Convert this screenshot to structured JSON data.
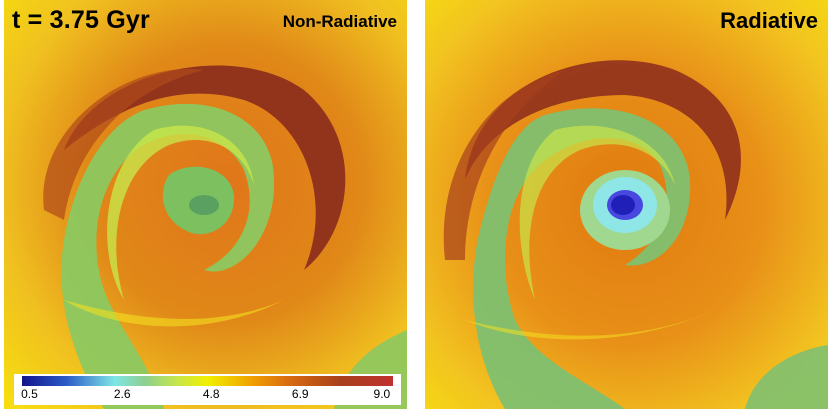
{
  "left_panel": {
    "time_label": "t = 3.75 Gyr",
    "title": "Non-Radiative"
  },
  "right_panel": {
    "title": "Radiative"
  },
  "colorbar": {
    "ticks": [
      "0.5",
      "2.6",
      "4.8",
      "6.9",
      "9.0"
    ]
  },
  "colors": {
    "hot": "#e07a10",
    "warm": "#f0b000",
    "dark_red": "#8a2a1c",
    "cool_green": "#7fc060",
    "light_green": "#c8e64a",
    "cyan": "#8ee6e6",
    "blue": "#2a2ad0"
  }
}
